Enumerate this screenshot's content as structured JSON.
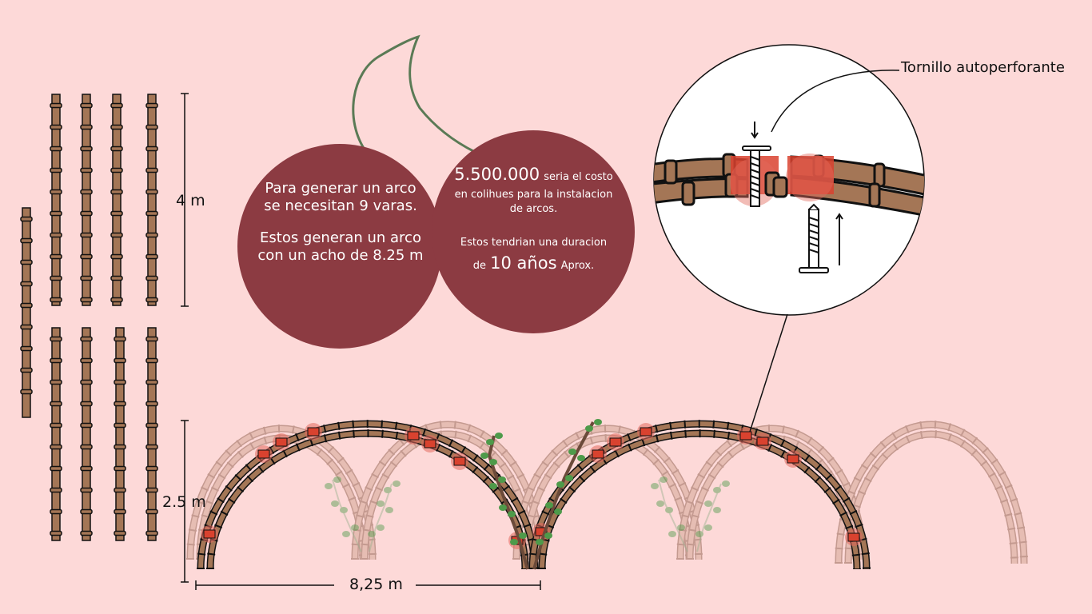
{
  "colors": {
    "background": "#fdd9d8",
    "circle": "#8c3b42",
    "cane": "#a47656",
    "cane_faded": "#e6bdb3",
    "joint_highlight": "#d9422f",
    "leaf": "#4e9a4a",
    "stem": "#5d7a55"
  },
  "dimensions": {
    "height_canes": "4 m",
    "arch_height": "2.5 m",
    "arch_width": "8,25 m"
  },
  "callout_left": {
    "line1": "Para generar un arco",
    "line2": "se necesitan 9 varas.",
    "line3": "Estos generan un arco",
    "line4": "con un acho de 8.25 m"
  },
  "callout_right": {
    "cost_value": "5.500.000",
    "cost_text_a": "seria el costo",
    "cost_text_b": "en colihues para la instalacion",
    "cost_text_c": "de arcos.",
    "duration_text": "Estos tendrian una duracion",
    "duration_prefix": "de",
    "duration_value": "10 años",
    "duration_suffix": "Aprox."
  },
  "detail": {
    "screw_label": "Tornillo autoperforante"
  },
  "icons": {
    "cane": "bamboo-cane-icon",
    "screw": "screw-icon",
    "leaf": "leaf-icon"
  }
}
